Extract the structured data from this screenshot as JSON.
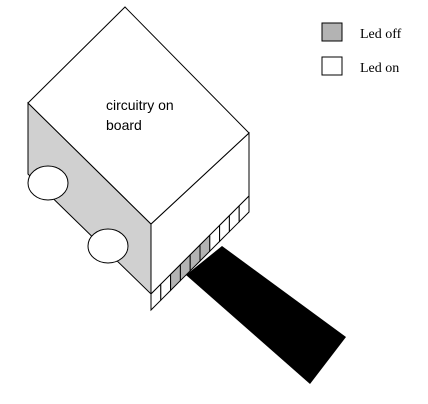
{
  "board": {
    "label_line1": "circuitry on",
    "label_line2": "board"
  },
  "legend": {
    "items": [
      {
        "label": "Led off",
        "color": "#b3b3b3"
      },
      {
        "label": "Led on",
        "color": "#ffffff"
      }
    ]
  },
  "colors": {
    "outline": "#000000",
    "side_face": "#d0d0d0",
    "top_face": "#ffffff",
    "track": "#000000",
    "led_off": "#b3b3b3",
    "led_on": "#ffffff"
  },
  "sensors": {
    "states": [
      "on",
      "on",
      "off",
      "off",
      "off",
      "off",
      "on",
      "on",
      "on",
      "on"
    ]
  }
}
